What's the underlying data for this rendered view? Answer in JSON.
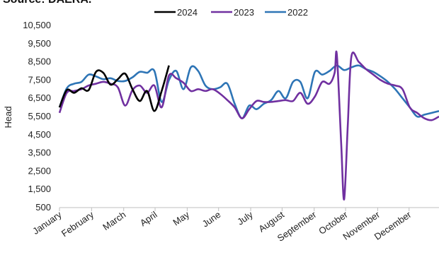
{
  "source_text": "Source: DAERA.",
  "chart_data": {
    "type": "line",
    "title": "",
    "xlabel": "",
    "ylabel": "Head",
    "ylim": [
      500,
      10500
    ],
    "yticks": [
      "10,500",
      "9,500",
      "8,500",
      "7,500",
      "6,500",
      "5,500",
      "4,500",
      "3,500",
      "2,500",
      "1,500",
      "500"
    ],
    "ytick_values": [
      10500,
      9500,
      8500,
      7500,
      6500,
      5500,
      4500,
      3500,
      2500,
      1500,
      500
    ],
    "grid": false,
    "legend_position": "top",
    "x_labels": [
      "January",
      "February",
      "March",
      "April",
      "May",
      "June",
      "July",
      "August",
      "September",
      "October",
      "November",
      "December"
    ],
    "x_label_weeks": [
      1,
      5.4,
      9.8,
      14.1,
      18.5,
      22.8,
      27.2,
      31.5,
      35.9,
      40.2,
      44.6,
      48.9
    ],
    "xlim": [
      1,
      53
    ],
    "series": [
      {
        "name": "2024",
        "color": "#000000",
        "x": [
          1,
          2,
          3,
          4,
          5,
          6,
          7,
          8,
          9,
          10,
          11,
          12,
          13,
          14,
          15,
          16
        ],
        "y": [
          6000,
          6950,
          6800,
          7050,
          6950,
          7950,
          7900,
          7250,
          7550,
          7850,
          7000,
          6350,
          6900,
          5800,
          6900,
          8300
        ]
      },
      {
        "name": "2023",
        "color": "#7030a0",
        "x": [
          1,
          2,
          3,
          4,
          5,
          6,
          7,
          8,
          9,
          10,
          11,
          12,
          13,
          14,
          15,
          16,
          17,
          18,
          19,
          20,
          21,
          22,
          23,
          24,
          25,
          26,
          27,
          28,
          29,
          30,
          31,
          32,
          33,
          34,
          35,
          36,
          37,
          38,
          38.7,
          39,
          39.6,
          40,
          40.5,
          41,
          42,
          43,
          44,
          45,
          46,
          47,
          48,
          49,
          50,
          51,
          52,
          53
        ],
        "y": [
          5700,
          6800,
          6900,
          7000,
          7200,
          7300,
          7400,
          7300,
          7100,
          6100,
          6950,
          7200,
          6800,
          7200,
          6000,
          7750,
          7600,
          7350,
          6900,
          7000,
          6900,
          7000,
          6750,
          6400,
          6000,
          5400,
          5900,
          6350,
          6300,
          6300,
          6350,
          6400,
          6350,
          6800,
          6200,
          6600,
          7400,
          7300,
          7900,
          8900,
          4000,
          950,
          5000,
          8800,
          8500,
          8100,
          7800,
          7500,
          7300,
          7200,
          7000,
          6000,
          5700,
          5400,
          5300,
          5500
        ]
      },
      {
        "name": "2022",
        "color": "#2e75b6",
        "x": [
          1,
          2,
          3,
          4,
          5,
          6,
          7,
          8,
          9,
          10,
          11,
          12,
          13,
          14,
          15,
          16,
          17,
          18,
          19,
          20,
          21,
          22,
          23,
          24,
          25,
          26,
          27,
          28,
          29,
          30,
          31,
          32,
          33,
          34,
          35,
          36,
          37,
          38,
          39,
          40,
          41,
          42,
          43,
          44,
          45,
          46,
          47,
          48,
          49,
          50,
          51,
          52,
          53
        ],
        "y": [
          6000,
          7050,
          7300,
          7400,
          7800,
          7700,
          7550,
          7600,
          7450,
          7450,
          7650,
          7950,
          7900,
          8000,
          6300,
          7500,
          8000,
          7000,
          8200,
          8000,
          7200,
          7000,
          7100,
          7300,
          6200,
          5400,
          6100,
          5900,
          6200,
          6400,
          6900,
          6500,
          7400,
          7400,
          6500,
          7950,
          7800,
          8000,
          8300,
          8050,
          8200,
          8300,
          8100,
          7950,
          7700,
          7400,
          7000,
          6500,
          6000,
          5500,
          5600,
          5700,
          5800
        ]
      }
    ]
  }
}
